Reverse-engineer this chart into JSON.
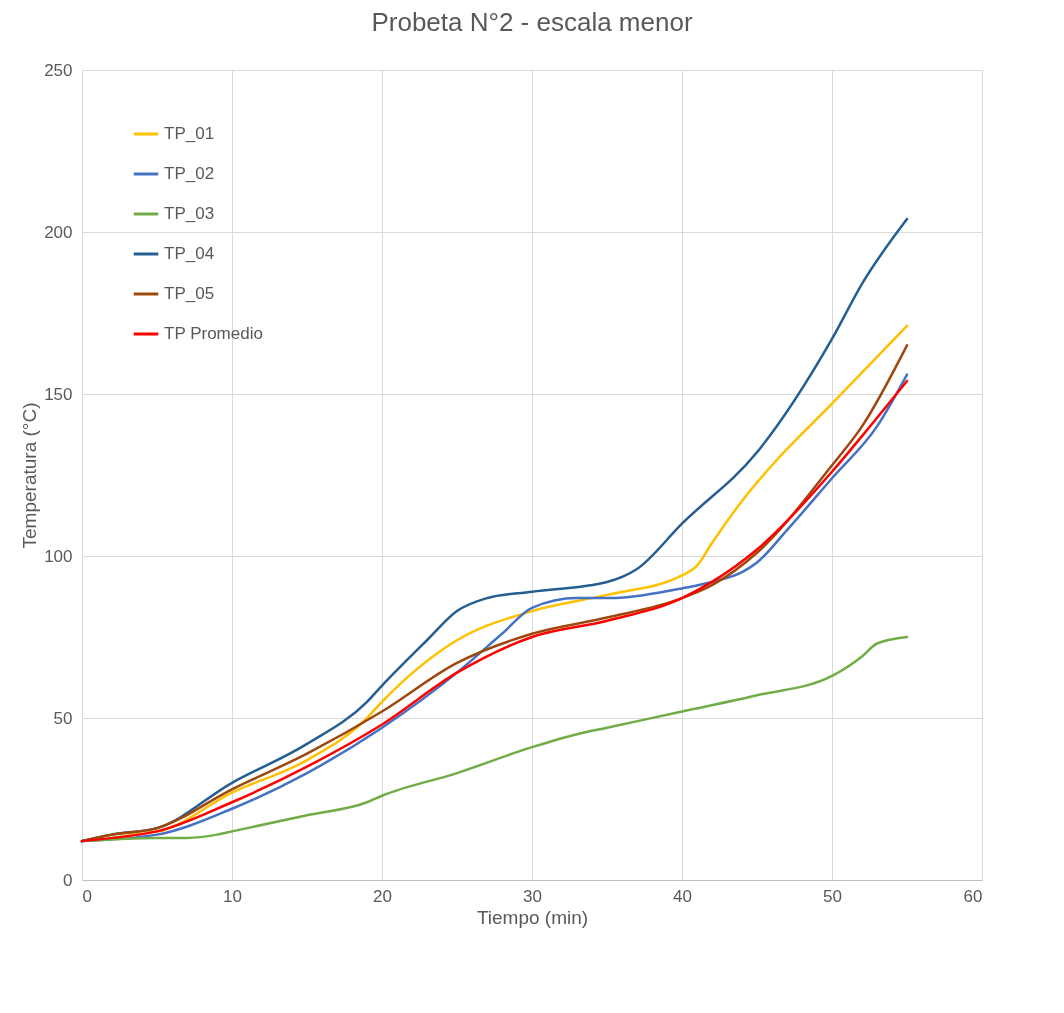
{
  "chart_data": {
    "type": "line",
    "title": "Probeta N°2 - escala menor",
    "xlabel": "Tiempo (min)",
    "ylabel": "Temperatura (°C)",
    "xlim": [
      0,
      60
    ],
    "xticks": [
      0,
      10,
      20,
      30,
      40,
      50,
      60
    ],
    "ylim": [
      0,
      250
    ],
    "yticks": [
      0,
      50,
      100,
      150,
      200,
      250
    ],
    "grid": true,
    "legend": "top left",
    "marker": "none",
    "line_style": "solid",
    "series": [
      {
        "name": "TP_01",
        "color": "#ffc000",
        "x": [
          0,
          2,
          5,
          10,
          15,
          19,
          20,
          25,
          30,
          35,
          40,
          41,
          42,
          44,
          46,
          50,
          55
        ],
        "values": [
          12,
          14,
          15,
          27,
          37,
          50,
          55,
          74,
          83,
          88,
          94,
          97,
          104,
          117,
          128,
          147,
          171
        ]
      },
      {
        "name": "TP_02",
        "color": "#4472c4",
        "x": [
          0,
          5,
          10,
          15,
          20,
          25,
          28,
          30,
          33,
          35,
          40,
          42,
          44,
          45,
          47,
          50,
          53,
          55
        ],
        "values": [
          12,
          14,
          22,
          33,
          47,
          64,
          76,
          84,
          87,
          87,
          90,
          92,
          95,
          98,
          108,
          124,
          140,
          156
        ]
      },
      {
        "name": "TP_03",
        "color": "#70ad47",
        "x": [
          0,
          5,
          7,
          9,
          10,
          15,
          19,
          20,
          25,
          30,
          33,
          35,
          40,
          45,
          50,
          52,
          53,
          55
        ],
        "values": [
          12,
          13,
          13,
          14,
          15,
          20,
          24,
          26,
          33,
          41,
          45,
          47,
          52,
          57,
          63,
          69,
          73,
          75
        ]
      },
      {
        "name": "TP_04",
        "color": "#255e91",
        "x": [
          0,
          2,
          5,
          10,
          15,
          19,
          20,
          23,
          25,
          27,
          30,
          35,
          37,
          40,
          45,
          50,
          52,
          55
        ],
        "values": [
          12,
          14,
          16,
          30,
          42,
          55,
          60,
          74,
          83,
          87,
          89,
          92,
          96,
          110,
          132,
          167,
          184,
          204
        ]
      },
      {
        "name": "TP_05",
        "color": "#9e480e",
        "x": [
          0,
          2,
          5,
          10,
          15,
          20,
          25,
          30,
          35,
          40,
          42,
          45,
          50,
          52,
          55
        ],
        "values": [
          12,
          14,
          16,
          28,
          39,
          52,
          67,
          76,
          81,
          87,
          91,
          101,
          128,
          140,
          165
        ]
      },
      {
        "name": "TP Promedio",
        "color": "#ff0000",
        "x": [
          0,
          2,
          5,
          10,
          15,
          20,
          25,
          30,
          35,
          40,
          42,
          45,
          50,
          52,
          55
        ],
        "values": [
          12,
          13,
          15,
          24,
          35,
          48,
          64,
          75,
          80,
          87,
          92,
          102,
          126,
          137,
          154
        ]
      }
    ]
  }
}
